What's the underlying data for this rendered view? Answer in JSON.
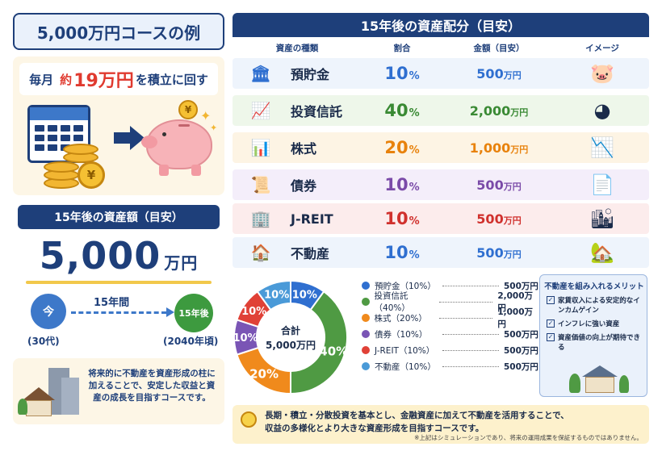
{
  "course_title": "5,000万円コースの例",
  "monthly": {
    "prefix": "毎月",
    "approx": "約",
    "amount": "19万円",
    "suffix": "を積立に回す",
    "yen_symbol": "¥"
  },
  "asset_target": {
    "heading": "15年後の資産額（目安）",
    "value": "5,000",
    "unit": "万円",
    "now_label": "今",
    "later_label": "15年後",
    "duration_label": "15年間",
    "now_age": "(30代)",
    "later_year": "(2040年頃)"
  },
  "future_note": "将来的に不動産を資産形成の柱に加えることで、安定した収益と資産の成長を目指すコースです。",
  "allocation": {
    "title": "15年後の資産配分（目安）",
    "headers": {
      "type": "資産の種類",
      "ratio": "割合",
      "amount": "金額（目安）",
      "image": "イメージ"
    },
    "rows": [
      {
        "name": "預貯金",
        "ratio": "10",
        "amount": "500",
        "color": "#2f6fd0",
        "bg": "#eef4fc",
        "icon": "bank-icon"
      },
      {
        "name": "投資信託",
        "ratio": "40",
        "amount": "2,000",
        "color": "#3a8a34",
        "bg": "#eef7ea",
        "icon": "growth-chart-icon"
      },
      {
        "name": "株式",
        "ratio": "20",
        "amount": "1,000",
        "color": "#e8820c",
        "bg": "#fdf4e4",
        "icon": "candlestick-icon"
      },
      {
        "name": "債券",
        "ratio": "10",
        "amount": "500",
        "color": "#7a4aa8",
        "bg": "#f4eefa",
        "icon": "certificate-icon"
      },
      {
        "name": "J-REIT",
        "ratio": "10",
        "amount": "500",
        "color": "#d0312d",
        "bg": "#fcecec",
        "icon": "building-icon"
      },
      {
        "name": "不動産",
        "ratio": "10",
        "amount": "500",
        "color": "#2f6fd0",
        "bg": "#eef4fc",
        "icon": "house-icon"
      }
    ],
    "pct_unit": "%",
    "amount_unit": "万円"
  },
  "chart_data": {
    "type": "pie",
    "categories": [
      "預貯金",
      "投資信託",
      "株式",
      "債券",
      "J-REIT",
      "不動産"
    ],
    "values": [
      10,
      40,
      20,
      10,
      10,
      10
    ],
    "colors": [
      "#2f6fd0",
      "#4f9a43",
      "#f08a1c",
      "#7a55b5",
      "#e04137",
      "#4a9ad8"
    ],
    "center_label": "合計",
    "center_value": "5,000万円"
  },
  "legend": [
    {
      "label": "預貯金（10%）",
      "value": "500万円",
      "color": "#2f6fd0"
    },
    {
      "label": "投資信託（40%）",
      "value": "2,000万円",
      "color": "#4f9a43"
    },
    {
      "label": "株式（20%）",
      "value": "1,000万円",
      "color": "#f08a1c"
    },
    {
      "label": "債券（10%）",
      "value": "500万円",
      "color": "#7a55b5"
    },
    {
      "label": "J-REIT（10%）",
      "value": "500万円",
      "color": "#e04137"
    },
    {
      "label": "不動産（10%）",
      "value": "500万円",
      "color": "#4a9ad8"
    }
  ],
  "merits": {
    "title": "不動産を組み入れるメリット",
    "items": [
      "家賃収入による安定的なインカムゲイン",
      "インフレに強い資産",
      "資産価値の向上が期待できる"
    ],
    "check": "✓"
  },
  "footer": {
    "line1": "長期・積立・分散投資を基本とし、金融資産に加えて不動産を活用することで、",
    "line2": "収益の多様化とより大きな資産形成を目指すコースです。",
    "note": "※上記はシミュレーションであり、将来の運用成果を保証するものではありません。"
  }
}
